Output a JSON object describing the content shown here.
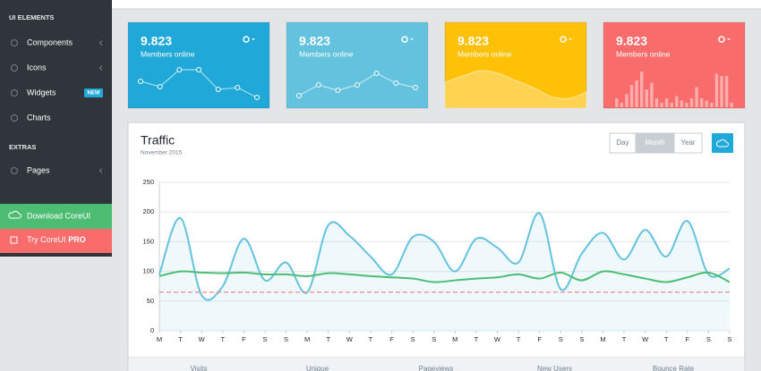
{
  "sidebar": {
    "ui_title": "UI ELEMENTS",
    "ui_items": [
      "Components",
      "Icons",
      "Widgets",
      "Charts"
    ],
    "badge": "NEW",
    "extras_title": "EXTRAS",
    "extras_items": [
      "Pages"
    ],
    "download": "Download CoreUI",
    "pro_prefix": "Try CoreUI",
    "pro_strong": "PRO"
  },
  "cards": [
    {
      "value": "9.823",
      "label": "Members online",
      "color": "#20a8d8",
      "spark": {
        "type": "line",
        "ylim": [
          0,
          100
        ],
        "values": [
          58,
          46,
          84,
          84,
          40,
          44,
          22
        ]
      }
    },
    {
      "value": "9.823",
      "label": "Members online",
      "color": "#63c2de",
      "spark": {
        "type": "line",
        "ylim": [
          0,
          100
        ],
        "values": [
          26,
          50,
          38,
          50,
          76,
          54,
          44
        ]
      }
    },
    {
      "value": "9.823",
      "label": "Members online",
      "color": "#ffc107",
      "spark": {
        "type": "area",
        "ylim": [
          0,
          100
        ],
        "values": [
          56,
          70,
          82,
          76,
          60,
          44,
          24,
          20,
          34
        ]
      }
    },
    {
      "value": "9.823",
      "label": "Members online",
      "color": "#f86c6b",
      "spark": {
        "type": "bar",
        "ylim": [
          0,
          100
        ],
        "values": [
          20,
          10,
          30,
          50,
          60,
          80,
          40,
          55,
          20,
          10,
          20,
          10,
          25,
          15,
          10,
          20,
          45,
          20,
          15,
          10,
          75,
          70,
          70,
          10
        ]
      }
    }
  ],
  "traffic": {
    "title": "Traffic",
    "subtitle": "November 2015",
    "buttons": [
      "Day",
      "Month",
      "Year"
    ],
    "active": "Month",
    "footer": [
      "Visits",
      "Unique",
      "Pageviews",
      "New Users",
      "Bounce Rate"
    ]
  },
  "chart_data": {
    "type": "line",
    "categories": [
      "M",
      "T",
      "W",
      "T",
      "F",
      "S",
      "S",
      "M",
      "T",
      "W",
      "T",
      "F",
      "S",
      "S",
      "M",
      "T",
      "W",
      "T",
      "F",
      "S",
      "S",
      "M",
      "T",
      "W",
      "T",
      "F",
      "S",
      "S"
    ],
    "series": [
      {
        "color": "#63c2de",
        "fill": true,
        "values": [
          95,
          190,
          60,
          75,
          155,
          85,
          115,
          65,
          178,
          160,
          125,
          95,
          158,
          150,
          100,
          155,
          140,
          115,
          198,
          70,
          130,
          165,
          120,
          170,
          125,
          185,
          95,
          105
        ]
      },
      {
        "color": "#4dbd74",
        "values": [
          92,
          100,
          98,
          97,
          98,
          95,
          95,
          92,
          97,
          95,
          92,
          90,
          88,
          82,
          85,
          88,
          90,
          95,
          88,
          98,
          85,
          100,
          95,
          88,
          82,
          90,
          98,
          82
        ]
      },
      {
        "color": "#f86c6b",
        "dashed": true,
        "values": [
          65,
          65,
          65,
          65,
          65,
          65,
          65,
          65,
          65,
          65,
          65,
          65,
          65,
          65,
          65,
          65,
          65,
          65,
          65,
          65,
          65,
          65,
          65,
          65,
          65,
          65,
          65,
          65
        ]
      }
    ],
    "ylim": [
      0,
      250
    ],
    "yticks": [
      0,
      50,
      100,
      150,
      200,
      250
    ],
    "grid": true
  }
}
